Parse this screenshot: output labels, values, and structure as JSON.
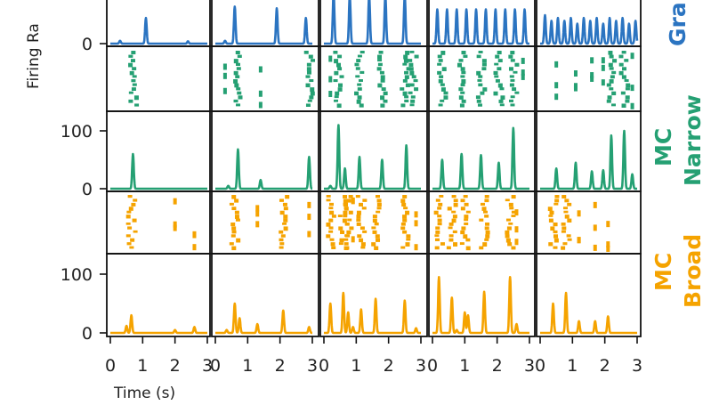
{
  "chart_data": {
    "type": "line",
    "layout": "grid of 5 columns; alternating raster and firing-rate rows",
    "xlabel": "Time (s)",
    "ylabel": "Firing Ra",
    "xlim": [
      0,
      3
    ],
    "xticks": [
      "0",
      "1",
      "2",
      "3"
    ],
    "ylim": [
      0,
      120
    ],
    "yticks": [
      "0",
      "100"
    ],
    "colors": {
      "Gra": "#2b74c1",
      "MC Narrow": "#25a073",
      "MC Broad": "#f5a300"
    },
    "row_labels": [
      {
        "lines": [
          "Gra"
        ],
        "color": "#2b74c1"
      },
      {
        "lines": [
          "MC",
          "Narrow"
        ],
        "color": "#25a073"
      },
      {
        "lines": [
          "MC",
          "Broad"
        ],
        "color": "#f5a300"
      }
    ],
    "firing_rate_rows": [
      {
        "population": "Gra",
        "yticks": [
          "0"
        ],
        "panels": [
          {
            "peaks": [
              [
                1.1,
                45
              ],
              [
                0.3,
                5
              ],
              [
                2.4,
                4
              ]
            ]
          },
          {
            "peaks": [
              [
                0.6,
                65
              ],
              [
                1.9,
                62
              ],
              [
                2.8,
                45
              ],
              [
                0.3,
                5
              ]
            ]
          },
          {
            "peaks": [
              [
                0.3,
                90
              ],
              [
                0.8,
                85
              ],
              [
                1.4,
                85
              ],
              [
                1.9,
                85
              ],
              [
                2.5,
                85
              ]
            ]
          },
          {
            "peaks": [
              [
                0.15,
                60
              ],
              [
                0.45,
                60
              ],
              [
                0.75,
                60
              ],
              [
                1.05,
                60
              ],
              [
                1.35,
                60
              ],
              [
                1.65,
                60
              ],
              [
                1.95,
                60
              ],
              [
                2.25,
                60
              ],
              [
                2.55,
                60
              ],
              [
                2.85,
                60
              ]
            ]
          },
          {
            "peaks": [
              [
                0.15,
                50
              ],
              [
                0.35,
                40
              ],
              [
                0.55,
                45
              ],
              [
                0.75,
                40
              ],
              [
                0.95,
                45
              ],
              [
                1.15,
                35
              ],
              [
                1.35,
                45
              ],
              [
                1.55,
                40
              ],
              [
                1.75,
                45
              ],
              [
                1.95,
                35
              ],
              [
                2.15,
                45
              ],
              [
                2.35,
                40
              ],
              [
                2.55,
                45
              ],
              [
                2.75,
                35
              ],
              [
                2.95,
                40
              ]
            ]
          }
        ]
      },
      {
        "population": "MC Narrow",
        "yticks": [
          "0",
          "100"
        ],
        "panels": [
          {
            "peaks": [
              [
                0.7,
                60
              ]
            ]
          },
          {
            "peaks": [
              [
                0.7,
                68
              ],
              [
                1.4,
                15
              ],
              [
                0.4,
                5
              ],
              [
                2.9,
                55
              ]
            ]
          },
          {
            "peaks": [
              [
                0.45,
                110
              ],
              [
                0.65,
                35
              ],
              [
                1.1,
                55
              ],
              [
                1.8,
                50
              ],
              [
                2.55,
                75
              ],
              [
                0.2,
                5
              ]
            ]
          },
          {
            "peaks": [
              [
                0.3,
                50
              ],
              [
                0.9,
                60
              ],
              [
                1.5,
                58
              ],
              [
                2.05,
                45
              ],
              [
                2.5,
                105
              ]
            ]
          },
          {
            "peaks": [
              [
                0.5,
                35
              ],
              [
                1.1,
                45
              ],
              [
                1.6,
                30
              ],
              [
                1.95,
                32
              ],
              [
                2.2,
                92
              ],
              [
                2.6,
                100
              ],
              [
                2.85,
                25
              ]
            ]
          }
        ]
      },
      {
        "population": "MC Broad",
        "yticks": [
          "0",
          "100"
        ],
        "panels": [
          {
            "peaks": [
              [
                0.5,
                12
              ],
              [
                0.65,
                30
              ],
              [
                2.0,
                5
              ],
              [
                2.6,
                10
              ]
            ]
          },
          {
            "peaks": [
              [
                0.35,
                5
              ],
              [
                0.6,
                50
              ],
              [
                0.75,
                25
              ],
              [
                1.3,
                15
              ],
              [
                2.1,
                38
              ],
              [
                2.9,
                10
              ]
            ]
          },
          {
            "peaks": [
              [
                0.2,
                50
              ],
              [
                0.6,
                68
              ],
              [
                0.75,
                35
              ],
              [
                0.9,
                10
              ],
              [
                1.15,
                40
              ],
              [
                1.6,
                58
              ],
              [
                2.5,
                55
              ],
              [
                2.85,
                8
              ]
            ]
          },
          {
            "peaks": [
              [
                0.2,
                95
              ],
              [
                0.6,
                60
              ],
              [
                0.75,
                5
              ],
              [
                1.0,
                35
              ],
              [
                1.1,
                30
              ],
              [
                1.6,
                70
              ],
              [
                2.4,
                95
              ],
              [
                2.6,
                15
              ]
            ]
          },
          {
            "peaks": [
              [
                0.4,
                50
              ],
              [
                0.8,
                68
              ],
              [
                1.2,
                20
              ],
              [
                1.7,
                20
              ],
              [
                2.1,
                28
              ]
            ]
          }
        ]
      }
    ],
    "raster_rows": [
      {
        "population": "MC Narrow",
        "panels": [
          {
            "bursts": [
              0.7
            ]
          },
          {
            "bursts": [
              0.7,
              2.9
            ],
            "sparse": [
              0.3,
              1.4
            ]
          },
          {
            "bursts": [
              0.45,
              1.1,
              1.8,
              2.5,
              2.75
            ],
            "sparse": [
              0.2
            ]
          },
          {
            "bursts": [
              0.3,
              0.9,
              1.5,
              2.05,
              2.5
            ],
            "sparse": [
              2.8
            ]
          },
          {
            "bursts": [
              2.2,
              2.6
            ],
            "sparse": [
              0.5,
              1.1,
              1.6,
              1.95,
              2.85
            ]
          }
        ]
      },
      {
        "population": "MC Broad",
        "panels": [
          {
            "bursts": [
              0.65
            ],
            "sparse": [
              2.0,
              2.6
            ]
          },
          {
            "bursts": [
              0.6,
              2.1
            ],
            "sparse": [
              1.3,
              2.9
            ]
          },
          {
            "bursts": [
              0.2,
              0.6,
              0.75,
              1.15,
              1.6,
              2.5
            ],
            "sparse": [
              0.9,
              2.85
            ]
          },
          {
            "bursts": [
              0.2,
              0.6,
              1.0,
              1.6,
              2.4
            ],
            "sparse": [
              2.6
            ]
          },
          {
            "bursts": [
              0.4,
              0.8
            ],
            "sparse": [
              1.2,
              1.7,
              2.1
            ]
          }
        ]
      }
    ]
  }
}
